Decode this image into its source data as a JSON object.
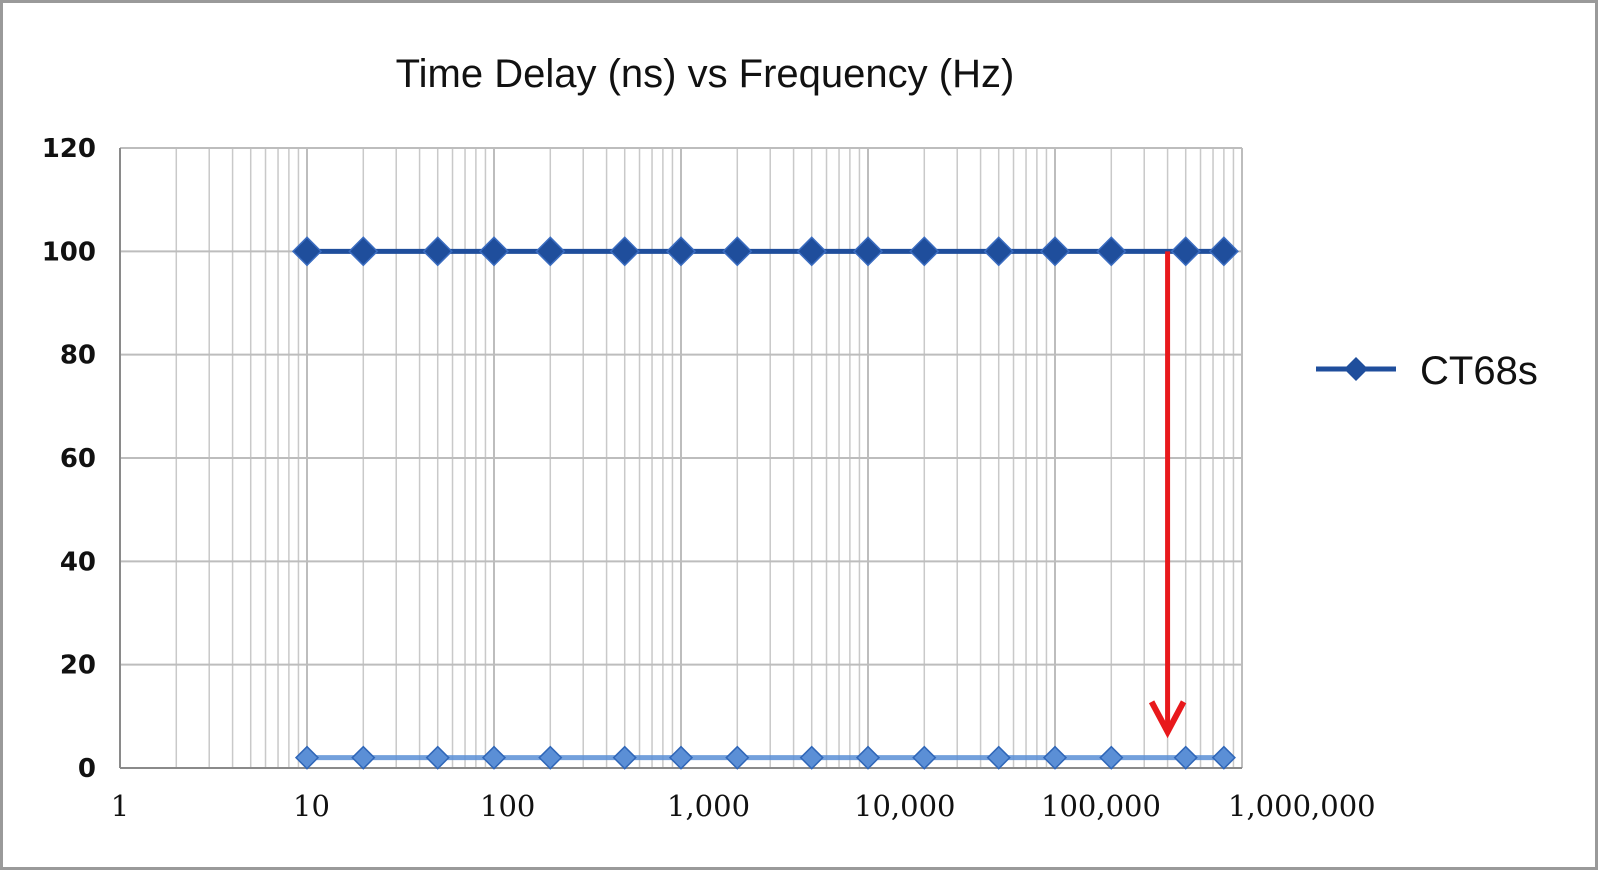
{
  "chart_data": {
    "type": "line",
    "title": "Time Delay (ns) vs Frequency (Hz)",
    "xlabel": "",
    "ylabel": "",
    "x_scale": "log",
    "xlim": [
      1,
      1000000
    ],
    "ylim": [
      0,
      120
    ],
    "grid": true,
    "legend_position": "right",
    "y_ticks": [
      "120",
      "100",
      "80",
      "60",
      "40",
      "20",
      "0"
    ],
    "y_tick_values": [
      120,
      100,
      80,
      60,
      40,
      20,
      0
    ],
    "x_ticks": [
      "1",
      "10",
      "100",
      "1,000",
      "10,000",
      "100,000",
      "1,000,000"
    ],
    "x_tick_values": [
      1,
      10,
      100,
      1000,
      10000,
      100000,
      1000000
    ],
    "series": [
      {
        "name": "CT68s",
        "color": "#1f4e9c",
        "x": [
          10,
          20,
          50,
          100,
          200,
          500,
          1000,
          2000,
          5000,
          10000,
          20000,
          50000,
          100000,
          200000,
          500000,
          800000
        ],
        "y": [
          100,
          100,
          100,
          100,
          100,
          100,
          100,
          100,
          100,
          100,
          100,
          100,
          100,
          100,
          100,
          100
        ]
      },
      {
        "color": "#5b8fd6",
        "x": [
          10,
          20,
          50,
          100,
          200,
          500,
          1000,
          2000,
          5000,
          10000,
          20000,
          50000,
          100000,
          200000,
          500000,
          800000
        ],
        "y": [
          2,
          2,
          2,
          2,
          2,
          2,
          2,
          2,
          2,
          2,
          2,
          2,
          2,
          2,
          2,
          2
        ]
      }
    ],
    "annotations": [
      {
        "type": "arrow",
        "color": "#e8191c",
        "x": 400000,
        "y_from": 100,
        "y_to": 7
      }
    ]
  }
}
